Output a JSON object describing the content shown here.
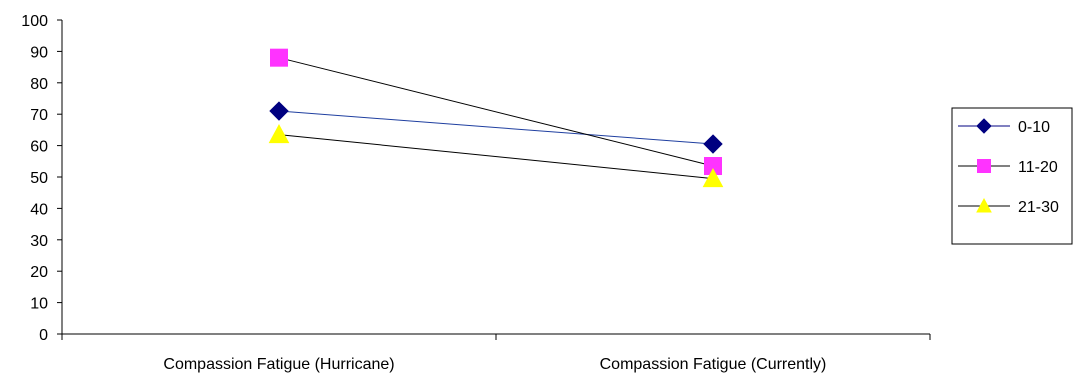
{
  "chart_data": {
    "type": "line",
    "title": "",
    "xlabel": "",
    "ylabel": "",
    "categories": [
      "Compassion Fatigue (Hurricane)",
      "Compassion Fatigue (Currently)"
    ],
    "ylim": [
      0,
      100
    ],
    "yticks": [
      "0",
      "10",
      "20",
      "30",
      "40",
      "50",
      "60",
      "70",
      "80",
      "90",
      "100"
    ],
    "grid": false,
    "legend_position": "right",
    "series": [
      {
        "name": "0-10",
        "values": [
          71,
          60.5
        ],
        "color": "#000080",
        "line_color": "#1f3fa0",
        "marker": "diamond"
      },
      {
        "name": "11-20",
        "values": [
          88,
          53.5
        ],
        "color": "#ff33ff",
        "line_color": "#000000",
        "marker": "square"
      },
      {
        "name": "21-30",
        "values": [
          63.5,
          49.5
        ],
        "color": "#ffff00",
        "line_color": "#000000",
        "marker": "triangle"
      }
    ]
  }
}
